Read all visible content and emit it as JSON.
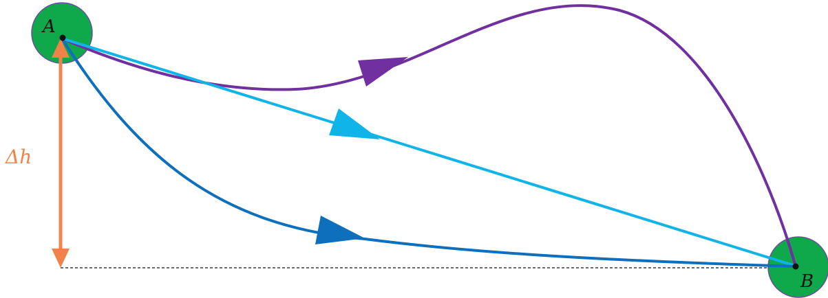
{
  "points": {
    "a": {
      "label": "A"
    },
    "b": {
      "label": "B"
    }
  },
  "height_difference": {
    "label": "Δh"
  },
  "colors": {
    "node_fill": "#0fa84b",
    "node_stroke": "#6b4f9c",
    "path_curved_up": "#7030a0",
    "path_straight": "#10b4e8",
    "path_curved_down": "#0e6fbd",
    "height_arrow": "#f0834a",
    "baseline": "#111111"
  }
}
